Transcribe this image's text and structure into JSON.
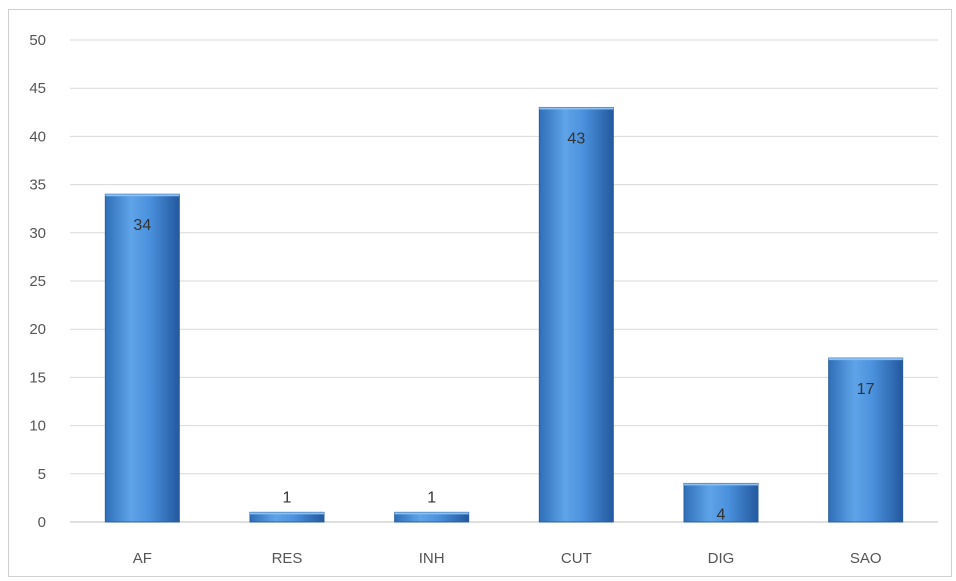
{
  "chart_data": {
    "type": "bar",
    "categories": [
      "AF",
      "RES",
      "INH",
      "CUT",
      "DIG",
      "SAO"
    ],
    "values": [
      34,
      1,
      1,
      43,
      4,
      17
    ],
    "data_labels": [
      "34",
      "1",
      "1",
      "43",
      "4",
      "17"
    ],
    "title": "",
    "xlabel": "",
    "ylabel": "",
    "ylim": [
      0,
      50
    ],
    "yticks": [
      0,
      5,
      10,
      15,
      20,
      25,
      30,
      35,
      40,
      45,
      50
    ],
    "ytick_labels": [
      "0",
      "5",
      "10",
      "15",
      "20",
      "25",
      "30",
      "35",
      "40",
      "45",
      "50"
    ],
    "grid": true,
    "legend": "none",
    "bar_color": "#3d85d2",
    "bar_edge_color": "#2a5f9e",
    "grid_color": "#d9d9d9"
  }
}
